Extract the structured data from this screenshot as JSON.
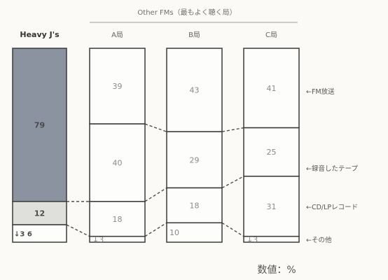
{
  "chart_data": {
    "type": "bar",
    "subtype": "stacked-100-percent",
    "group_header": "Other FMs（最もよく聴く局）",
    "unit_note": "数値：%",
    "categories": [
      "Heavy J's",
      "A局",
      "B局",
      "C局"
    ],
    "series": [
      {
        "name": "FM放送",
        "values": [
          0,
          39,
          43,
          41
        ]
      },
      {
        "name": "録音したテープ",
        "values": [
          79,
          40,
          29,
          25
        ]
      },
      {
        "name": "CD/LPレコード",
        "values": [
          12,
          18,
          18,
          31
        ]
      },
      {
        "name": "その他",
        "values": [
          9,
          3,
          10,
          3
        ]
      }
    ],
    "bar_labels": [
      [
        "",
        "79",
        "12",
        "↓3  6"
      ],
      [
        "39",
        "40",
        "18",
        "↓3"
      ],
      [
        "43",
        "29",
        "18",
        "10"
      ],
      [
        "41",
        "25",
        "31",
        "↓3"
      ]
    ],
    "ylim": [
      0,
      100
    ]
  },
  "colors": {
    "heavy_tape": "#8c93a0",
    "heavy_cd": "#dfe0dc",
    "bar_fill": "#fdfdfb",
    "stroke": "#3a3a3a",
    "label": "#8a8a8a",
    "heavy_label": "#4a4a4a"
  }
}
